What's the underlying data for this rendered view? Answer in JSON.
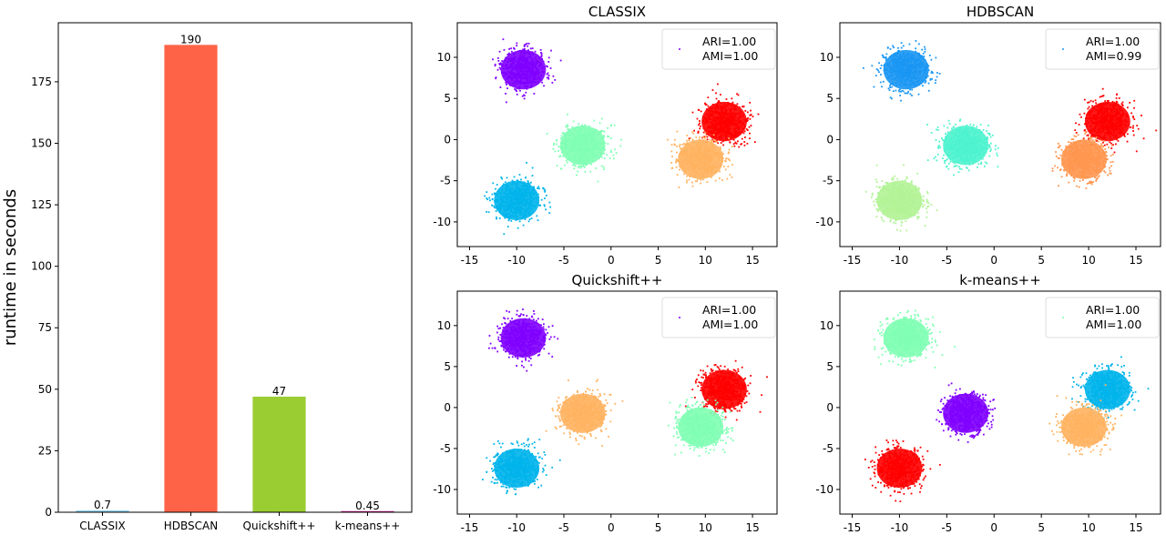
{
  "chart_data": [
    {
      "type": "bar",
      "title": "",
      "xlabel": "",
      "ylabel": "runtime in seconds",
      "categories": [
        "CLASSIX",
        "HDBSCAN",
        "Quickshift++",
        "k-means++"
      ],
      "values": [
        0.7,
        190,
        47,
        0.45
      ],
      "value_labels": [
        "0.7",
        "190",
        "47",
        "0.45"
      ],
      "colors": [
        "#87ceeb",
        "#ff6347",
        "#9acd32",
        "#c71585"
      ],
      "ylim": [
        0,
        199
      ],
      "yticks": [
        0,
        25,
        50,
        75,
        100,
        125,
        150,
        175
      ],
      "grid": false
    },
    {
      "type": "scatter",
      "title": "CLASSIX",
      "xlim": [
        -16.3,
        17.6
      ],
      "ylim": [
        -13,
        14.2
      ],
      "xticks": [
        -15,
        -10,
        -5,
        0,
        5,
        10,
        15
      ],
      "yticks": [
        -10,
        -5,
        0,
        5,
        10
      ],
      "legend": [
        "ARI=1.00",
        "AMI=1.00"
      ],
      "legend_loc": "upper right",
      "clusters": [
        {
          "center": [
            -9.3,
            8.5
          ],
          "color": "#8000ff"
        },
        {
          "center": [
            -3.0,
            -0.7
          ],
          "color": "#80ffb4"
        },
        {
          "center": [
            -10.0,
            -7.4
          ],
          "color": "#00b4eb"
        },
        {
          "center": [
            12.0,
            2.2
          ],
          "color": "#ff0000"
        },
        {
          "center": [
            9.5,
            -2.4
          ],
          "color": "#ffb360"
        }
      ]
    },
    {
      "type": "scatter",
      "title": "HDBSCAN",
      "xlim": [
        -16.3,
        17.6
      ],
      "ylim": [
        -13,
        14.2
      ],
      "xticks": [
        -15,
        -10,
        -5,
        0,
        5,
        10,
        15
      ],
      "yticks": [
        -10,
        -5,
        0,
        5,
        10
      ],
      "legend": [
        "ARI=1.00",
        "AMI=0.99"
      ],
      "legend_loc": "upper right",
      "clusters": [
        {
          "center": [
            -9.3,
            8.5
          ],
          "color": "#1996f3"
        },
        {
          "center": [
            -3.0,
            -0.7
          ],
          "color": "#4df3ce"
        },
        {
          "center": [
            -10.0,
            -7.4
          ],
          "color": "#b2f396"
        },
        {
          "center": [
            12.0,
            2.2
          ],
          "color": "#ff0000"
        },
        {
          "center": [
            9.5,
            -2.4
          ],
          "color": "#ff964f"
        }
      ]
    },
    {
      "type": "scatter",
      "title": "Quickshift++",
      "xlim": [
        -16.3,
        17.6
      ],
      "ylim": [
        -13,
        14.2
      ],
      "xticks": [
        -15,
        -10,
        -5,
        0,
        5,
        10,
        15
      ],
      "yticks": [
        -10,
        -5,
        0,
        5,
        10
      ],
      "legend": [
        "ARI=1.00",
        "AMI=1.00"
      ],
      "legend_loc": "upper right",
      "clusters": [
        {
          "center": [
            -9.3,
            8.5
          ],
          "color": "#8000ff"
        },
        {
          "center": [
            -3.0,
            -0.7
          ],
          "color": "#ffb360"
        },
        {
          "center": [
            -10.0,
            -7.4
          ],
          "color": "#00b4eb"
        },
        {
          "center": [
            12.0,
            2.2
          ],
          "color": "#ff0000"
        },
        {
          "center": [
            9.5,
            -2.4
          ],
          "color": "#80ffb4"
        }
      ]
    },
    {
      "type": "scatter",
      "title": "k-means++",
      "xlim": [
        -16.3,
        17.6
      ],
      "ylim": [
        -13,
        14.2
      ],
      "xticks": [
        -15,
        -10,
        -5,
        0,
        5,
        10,
        15
      ],
      "yticks": [
        -10,
        -5,
        0,
        5,
        10
      ],
      "legend": [
        "ARI=1.00",
        "AMI=1.00"
      ],
      "legend_loc": "upper right",
      "clusters": [
        {
          "center": [
            -9.3,
            8.5
          ],
          "color": "#80ffb4"
        },
        {
          "center": [
            -3.0,
            -0.7
          ],
          "color": "#8000ff"
        },
        {
          "center": [
            -10.0,
            -7.4
          ],
          "color": "#ff0000"
        },
        {
          "center": [
            12.0,
            2.2
          ],
          "color": "#00b4eb"
        },
        {
          "center": [
            9.5,
            -2.4
          ],
          "color": "#ffb360"
        }
      ]
    }
  ]
}
